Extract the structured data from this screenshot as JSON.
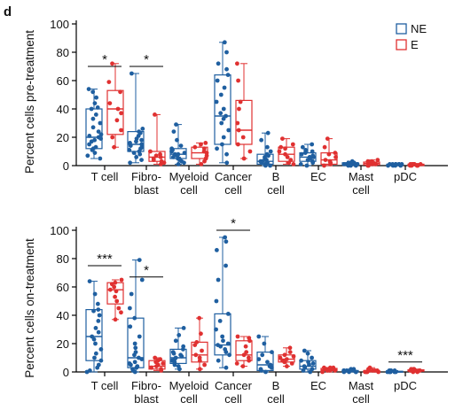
{
  "panel_label": "d",
  "legend": [
    {
      "name": "NE",
      "color": "#1f5fa0"
    },
    {
      "name": "E",
      "color": "#e03131"
    }
  ],
  "chart_data": [
    {
      "type": "box",
      "ylabel": "Percent cells pre-treatment",
      "ylim": [
        0,
        100
      ],
      "yticks": [
        "0",
        "20",
        "40",
        "60",
        "80",
        "100"
      ],
      "categories": [
        {
          "lines": [
            "T cell"
          ]
        },
        {
          "lines": [
            "Fibro-",
            "blast"
          ]
        },
        {
          "lines": [
            "Myeloid",
            "cell"
          ]
        },
        {
          "lines": [
            "Cancer",
            "cell"
          ]
        },
        {
          "lines": [
            "B",
            "cell"
          ]
        },
        {
          "lines": [
            "EC"
          ]
        },
        {
          "lines": [
            "Mast",
            "cell"
          ]
        },
        {
          "lines": [
            "pDC"
          ]
        }
      ],
      "series": [
        {
          "name": "NE",
          "color": "#1f5fa0",
          "boxes": [
            {
              "min": 5,
              "q1": 12,
              "median": 20,
              "q3": 40,
              "max": 54,
              "points": [
                5,
                7,
                9,
                11,
                12,
                13,
                15,
                17,
                18,
                19,
                20,
                21,
                22,
                24,
                27,
                30,
                33,
                36,
                40,
                41,
                44,
                48,
                52,
                54
              ]
            },
            {
              "min": 2,
              "q1": 10,
              "median": 15,
              "q3": 24,
              "max": 65,
              "points": [
                2,
                4,
                6,
                8,
                9,
                10,
                11,
                12,
                13,
                14,
                15,
                16,
                17,
                18,
                19,
                21,
                23,
                24,
                26,
                65
              ]
            },
            {
              "min": 1,
              "q1": 5,
              "median": 8,
              "q3": 12,
              "max": 29,
              "points": [
                1,
                2,
                3,
                4,
                5,
                5,
                6,
                7,
                8,
                8,
                9,
                10,
                11,
                12,
                14,
                18,
                24,
                29
              ]
            },
            {
              "min": 2,
              "q1": 15,
              "median": 35,
              "q3": 64,
              "max": 87,
              "points": [
                2,
                8,
                12,
                15,
                20,
                25,
                30,
                33,
                35,
                37,
                40,
                45,
                50,
                55,
                60,
                64,
                68,
                72,
                80,
                87
              ]
            },
            {
              "min": 0,
              "q1": 1,
              "median": 3,
              "q3": 8,
              "max": 23,
              "points": [
                0,
                0,
                1,
                1,
                2,
                2,
                3,
                3,
                4,
                5,
                6,
                7,
                8,
                10,
                13,
                18,
                23
              ]
            },
            {
              "min": 0,
              "q1": 3,
              "median": 6,
              "q3": 9,
              "max": 15,
              "points": [
                0,
                1,
                2,
                3,
                4,
                5,
                6,
                6,
                7,
                8,
                9,
                10,
                11,
                13,
                15
              ]
            },
            {
              "min": 0,
              "q1": 0.5,
              "median": 1,
              "q3": 2,
              "max": 3,
              "points": [
                0,
                0,
                0,
                1,
                1,
                1,
                1,
                2,
                2,
                2,
                3
              ]
            },
            {
              "min": 0,
              "q1": 0,
              "median": 0.5,
              "q3": 1,
              "max": 1.5,
              "points": [
                0,
                0,
                0,
                0,
                1,
                1,
                1,
                1,
                1,
                1,
                1
              ]
            }
          ]
        },
        {
          "name": "E",
          "color": "#e03131",
          "boxes": [
            {
              "min": 13,
              "q1": 22,
              "median": 40,
              "q3": 53,
              "max": 72,
              "points": [
                13,
                20,
                25,
                32,
                37,
                40,
                44,
                52,
                59,
                72
              ]
            },
            {
              "min": 1,
              "q1": 3,
              "median": 6,
              "q3": 10,
              "max": 36,
              "points": [
                1,
                2,
                3,
                4,
                5,
                6,
                7,
                8,
                10,
                36
              ]
            },
            {
              "min": 1,
              "q1": 5,
              "median": 9,
              "q3": 13,
              "max": 16,
              "points": [
                1,
                3,
                5,
                7,
                9,
                10,
                12,
                13,
                15,
                16
              ]
            },
            {
              "min": 5,
              "q1": 15,
              "median": 25,
              "q3": 46,
              "max": 72,
              "points": [
                5,
                10,
                15,
                20,
                25,
                30,
                40,
                45,
                60,
                72
              ]
            },
            {
              "min": 1,
              "q1": 3,
              "median": 8,
              "q3": 13,
              "max": 19,
              "points": [
                1,
                2,
                4,
                6,
                8,
                10,
                12,
                13,
                15,
                19
              ]
            },
            {
              "min": 0,
              "q1": 1,
              "median": 4,
              "q3": 9,
              "max": 19,
              "points": [
                0,
                1,
                2,
                3,
                4,
                6,
                8,
                9,
                13,
                19
              ]
            },
            {
              "min": 0,
              "q1": 0.5,
              "median": 1.5,
              "q3": 2.5,
              "max": 4,
              "points": [
                0,
                0,
                1,
                1,
                2,
                2,
                2,
                3,
                3,
                4
              ]
            },
            {
              "min": 0,
              "q1": 0,
              "median": 0.5,
              "q3": 1,
              "max": 1.5,
              "points": [
                0,
                0,
                0,
                0,
                1,
                1,
                1,
                1,
                1,
                1
              ]
            }
          ]
        }
      ],
      "significance": [
        {
          "category_index": 0,
          "label": "*",
          "y": 70
        },
        {
          "category_index": 1,
          "label": "*",
          "y": 70
        }
      ]
    },
    {
      "type": "box",
      "ylabel": "Percent cells on-treatment",
      "ylim": [
        0,
        100
      ],
      "yticks": [
        "0",
        "20",
        "40",
        "60",
        "80",
        "100"
      ],
      "categories": [
        {
          "lines": [
            "T cell"
          ]
        },
        {
          "lines": [
            "Fibro-",
            "blast"
          ]
        },
        {
          "lines": [
            "Myeloid",
            "cell"
          ]
        },
        {
          "lines": [
            "Cancer",
            "cell"
          ]
        },
        {
          "lines": [
            "B",
            "cell"
          ]
        },
        {
          "lines": [
            "EC"
          ]
        },
        {
          "lines": [
            "Mast",
            "cell"
          ]
        },
        {
          "lines": [
            "pDC"
          ]
        }
      ],
      "series": [
        {
          "name": "NE",
          "color": "#1f5fa0",
          "boxes": [
            {
              "min": 0,
              "q1": 8,
              "median": 25,
              "q3": 44,
              "max": 64,
              "points": [
                0,
                1,
                3,
                5,
                8,
                10,
                13,
                16,
                20,
                23,
                25,
                28,
                31,
                36,
                40,
                43,
                44,
                48,
                55,
                64
              ]
            },
            {
              "min": 0,
              "q1": 3,
              "median": 10,
              "q3": 38,
              "max": 79,
              "points": [
                0,
                1,
                2,
                3,
                4,
                5,
                6,
                7,
                9,
                10,
                12,
                14,
                17,
                20,
                25,
                32,
                38,
                45,
                55,
                65,
                79
              ]
            },
            {
              "min": 2,
              "q1": 6,
              "median": 10,
              "q3": 16,
              "max": 31,
              "points": [
                2,
                4,
                5,
                6,
                7,
                8,
                9,
                10,
                11,
                12,
                13,
                14,
                16,
                18,
                22,
                26,
                31
              ]
            },
            {
              "min": 3,
              "q1": 12,
              "median": 19,
              "q3": 41,
              "max": 95,
              "points": [
                3,
                8,
                12,
                14,
                16,
                18,
                19,
                20,
                22,
                25,
                30,
                36,
                41,
                50,
                65,
                75,
                86,
                92,
                95
              ]
            },
            {
              "min": 0,
              "q1": 1,
              "median": 5,
              "q3": 14,
              "max": 25,
              "points": [
                0,
                1,
                2,
                3,
                4,
                5,
                7,
                9,
                12,
                14,
                20,
                25
              ]
            },
            {
              "min": 0,
              "q1": 2,
              "median": 4,
              "q3": 8,
              "max": 15,
              "points": [
                0,
                1,
                2,
                3,
                4,
                5,
                6,
                7,
                8,
                10,
                13,
                15
              ]
            },
            {
              "min": 0,
              "q1": 0,
              "median": 0.5,
              "q3": 1,
              "max": 2,
              "points": [
                0,
                0,
                0,
                0,
                1,
                1,
                1,
                1,
                1,
                2,
                2
              ]
            },
            {
              "min": 0,
              "q1": 0,
              "median": 0,
              "q3": 0.5,
              "max": 1,
              "points": [
                0,
                0,
                0,
                0,
                0,
                0,
                1,
                1,
                1,
                1
              ]
            }
          ]
        },
        {
          "name": "E",
          "color": "#e03131",
          "boxes": [
            {
              "min": 37,
              "q1": 48,
              "median": 58,
              "q3": 63,
              "max": 65,
              "points": [
                37,
                42,
                45,
                50,
                53,
                57,
                58,
                60,
                62,
                63,
                65
              ]
            },
            {
              "min": 1,
              "q1": 2,
              "median": 4,
              "q3": 8,
              "max": 10,
              "points": [
                1,
                2,
                3,
                4,
                5,
                6,
                7,
                8,
                9,
                10
              ]
            },
            {
              "min": 2,
              "q1": 7,
              "median": 12,
              "q3": 21,
              "max": 38,
              "points": [
                2,
                5,
                8,
                10,
                12,
                15,
                19,
                21,
                27,
                38
              ]
            },
            {
              "min": 4,
              "q1": 8,
              "median": 12,
              "q3": 22,
              "max": 25,
              "points": [
                4,
                6,
                8,
                10,
                12,
                14,
                18,
                22,
                24,
                25
              ]
            },
            {
              "min": 4,
              "q1": 7,
              "median": 9,
              "q3": 12,
              "max": 17,
              "points": [
                4,
                6,
                7,
                8,
                9,
                10,
                11,
                12,
                14,
                17
              ]
            },
            {
              "min": 0,
              "q1": 1,
              "median": 1.5,
              "q3": 2.5,
              "max": 3,
              "points": [
                0,
                1,
                1,
                1,
                2,
                2,
                2,
                3,
                3,
                3
              ]
            },
            {
              "min": 0,
              "q1": 0,
              "median": 0.5,
              "q3": 1,
              "max": 3,
              "points": [
                0,
                0,
                0,
                0,
                1,
                1,
                1,
                1,
                2,
                3
              ]
            },
            {
              "min": 0,
              "q1": 0.5,
              "median": 1,
              "q3": 1.5,
              "max": 2,
              "points": [
                0,
                0,
                1,
                1,
                1,
                1,
                1,
                2,
                2,
                2
              ]
            }
          ]
        }
      ],
      "significance": [
        {
          "category_index": 0,
          "label": "***",
          "y": 75
        },
        {
          "category_index": 1,
          "label": "*",
          "y": 67
        },
        {
          "category_index": 3,
          "label": "*",
          "y": 100
        },
        {
          "category_index": 7,
          "label": "***",
          "y": 7
        }
      ]
    }
  ]
}
